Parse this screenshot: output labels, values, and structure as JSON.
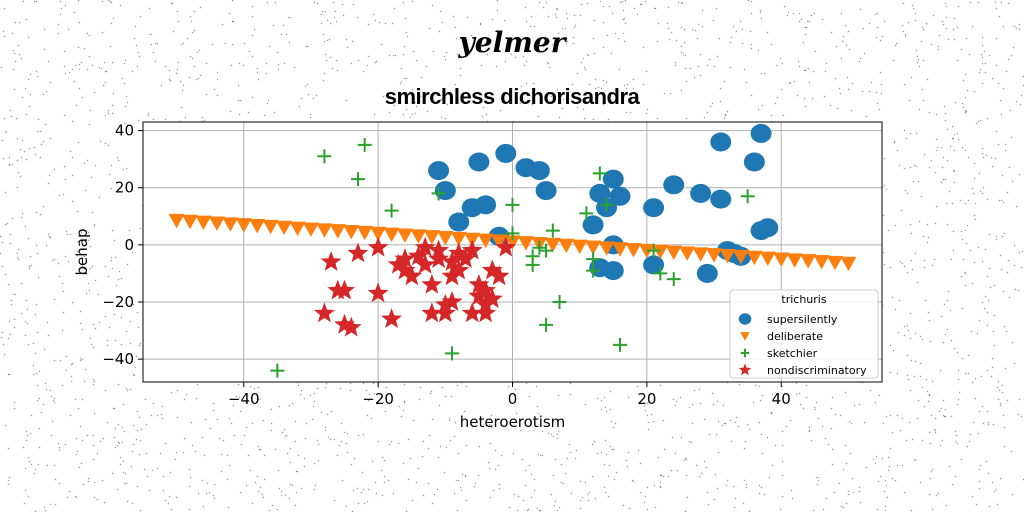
{
  "suptitle": "yelmer",
  "chart_data": {
    "type": "scatter",
    "title": "smirchless dichorisandra",
    "xlabel": "heteroerotism",
    "ylabel": "behap",
    "xlim": [
      -55,
      55
    ],
    "ylim": [
      -48,
      43
    ],
    "xticks": [
      -40,
      -20,
      0,
      20,
      40
    ],
    "yticks": [
      -40,
      -20,
      0,
      20,
      40
    ],
    "grid": true,
    "legend": {
      "title": "trichuris",
      "placement": "lower-right"
    },
    "colors": {
      "supersilently": "#1f77b4",
      "deliberate": "#ff7f0e",
      "sketchier": "#2ca02c",
      "nondiscriminatory": "#d62728"
    },
    "series": [
      {
        "name": "supersilently",
        "marker": "circle",
        "points": [
          [
            -11,
            26
          ],
          [
            -10,
            19
          ],
          [
            -8,
            8
          ],
          [
            -6,
            13
          ],
          [
            -5,
            29
          ],
          [
            -4,
            14
          ],
          [
            -2,
            3
          ],
          [
            -1,
            32
          ],
          [
            2,
            27
          ],
          [
            4,
            26
          ],
          [
            5,
            19
          ],
          [
            12,
            7
          ],
          [
            13,
            18
          ],
          [
            14,
            13
          ],
          [
            15,
            23
          ],
          [
            16,
            17
          ],
          [
            13,
            -8
          ],
          [
            15,
            -9
          ],
          [
            21,
            13
          ],
          [
            21,
            -7
          ],
          [
            24,
            21
          ],
          [
            28,
            18
          ],
          [
            29,
            -10
          ],
          [
            31,
            16
          ],
          [
            31,
            36
          ],
          [
            32,
            -2
          ],
          [
            33,
            -3
          ],
          [
            34,
            -4
          ],
          [
            36,
            29
          ],
          [
            37,
            39
          ],
          [
            37,
            5
          ],
          [
            38,
            6
          ],
          [
            15,
            0
          ]
        ]
      },
      {
        "name": "deliberate",
        "marker": "triangle-down",
        "points": [
          [
            -50,
            8.6
          ],
          [
            -48,
            8.3
          ],
          [
            -46,
            8.0
          ],
          [
            -44,
            7.7
          ],
          [
            -42,
            7.4
          ],
          [
            -40,
            7.1
          ],
          [
            -38,
            6.8
          ],
          [
            -36,
            6.5
          ],
          [
            -34,
            6.2
          ],
          [
            -32,
            5.9
          ],
          [
            -30,
            5.6
          ],
          [
            -28,
            5.3
          ],
          [
            -26,
            5.0
          ],
          [
            -24,
            4.7
          ],
          [
            -22,
            4.4
          ],
          [
            -20,
            4.1
          ],
          [
            -18,
            3.8
          ],
          [
            -16,
            3.5
          ],
          [
            -14,
            3.2
          ],
          [
            -12,
            2.9
          ],
          [
            -10,
            2.6
          ],
          [
            -8,
            2.3
          ],
          [
            -6,
            2.0
          ],
          [
            -4,
            1.7
          ],
          [
            -2,
            1.4
          ],
          [
            0,
            1.1
          ],
          [
            2,
            0.8
          ],
          [
            4,
            0.5
          ],
          [
            6,
            0.2
          ],
          [
            8,
            -0.1
          ],
          [
            10,
            -0.4
          ],
          [
            12,
            -0.7
          ],
          [
            14,
            -1.0
          ],
          [
            16,
            -1.3
          ],
          [
            18,
            -1.6
          ],
          [
            20,
            -1.9
          ],
          [
            22,
            -2.2
          ],
          [
            24,
            -2.5
          ],
          [
            26,
            -2.8
          ],
          [
            28,
            -3.1
          ],
          [
            30,
            -3.4
          ],
          [
            32,
            -3.7
          ],
          [
            34,
            -4.0
          ],
          [
            36,
            -4.3
          ],
          [
            38,
            -4.6
          ],
          [
            40,
            -4.9
          ],
          [
            42,
            -5.2
          ],
          [
            44,
            -5.5
          ],
          [
            46,
            -5.8
          ],
          [
            48,
            -6.1
          ],
          [
            50,
            -6.4
          ]
        ]
      },
      {
        "name": "sketchier",
        "marker": "plus",
        "points": [
          [
            -28,
            31
          ],
          [
            -22,
            35
          ],
          [
            -23,
            23
          ],
          [
            -18,
            12
          ],
          [
            -11,
            18
          ],
          [
            -9,
            -38
          ],
          [
            0,
            4
          ],
          [
            0,
            14
          ],
          [
            3,
            -7
          ],
          [
            3,
            -4
          ],
          [
            4,
            -1
          ],
          [
            5,
            -2
          ],
          [
            5,
            -28
          ],
          [
            6,
            5
          ],
          [
            7,
            -20
          ],
          [
            11,
            11
          ],
          [
            12,
            -9
          ],
          [
            12,
            -5
          ],
          [
            13,
            25
          ],
          [
            14,
            14
          ],
          [
            16,
            -35
          ],
          [
            21,
            -2
          ],
          [
            22,
            -10
          ],
          [
            24,
            -12
          ],
          [
            35,
            17
          ],
          [
            -35,
            -44
          ]
        ]
      },
      {
        "name": "nondiscriminatory",
        "marker": "star",
        "points": [
          [
            -28,
            -24
          ],
          [
            -27,
            -6
          ],
          [
            -26,
            -16
          ],
          [
            -25,
            -16
          ],
          [
            -25,
            -28
          ],
          [
            -24,
            -29
          ],
          [
            -23,
            -3
          ],
          [
            -20,
            -1
          ],
          [
            -20,
            -17
          ],
          [
            -18,
            -26
          ],
          [
            -17,
            -7
          ],
          [
            -16,
            -5
          ],
          [
            -16,
            -9
          ],
          [
            -15,
            -11
          ],
          [
            -14,
            -4
          ],
          [
            -13,
            -1
          ],
          [
            -13,
            -7
          ],
          [
            -12,
            -14
          ],
          [
            -12,
            -24
          ],
          [
            -11,
            -5
          ],
          [
            -10,
            -24
          ],
          [
            -10,
            -21
          ],
          [
            -9,
            -11
          ],
          [
            -9,
            -6
          ],
          [
            -8,
            -3
          ],
          [
            -8,
            -9
          ],
          [
            -7,
            -5
          ],
          [
            -6,
            -2
          ],
          [
            -5,
            -14
          ],
          [
            -5,
            -18
          ],
          [
            -4,
            -16
          ],
          [
            -4,
            -21
          ],
          [
            -4,
            -24
          ],
          [
            -3,
            -9
          ],
          [
            -3,
            -19
          ],
          [
            -2,
            -11
          ],
          [
            -1,
            -1
          ],
          [
            -11,
            -2
          ],
          [
            -9,
            -20
          ],
          [
            -6,
            -24
          ]
        ]
      }
    ]
  }
}
